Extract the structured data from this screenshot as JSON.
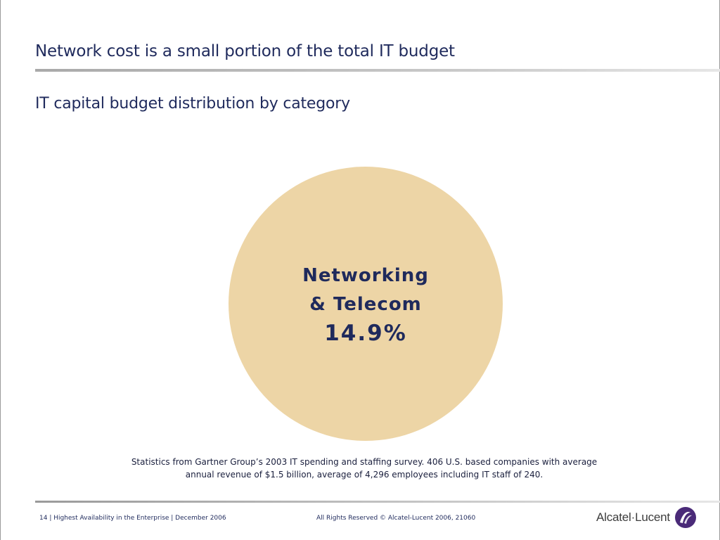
{
  "slide": {
    "title": "Network cost is a small portion of the total IT budget",
    "subtitle": "IT capital budget distribution by category"
  },
  "chart_data": {
    "type": "pie",
    "slices": [
      {
        "label_line1": "Networking",
        "label_line2": "& Telecom",
        "value_text": "14.9%",
        "value": 14.9
      }
    ],
    "colors": {
      "fill": "#edd5a6",
      "label": "#1f2a5c"
    }
  },
  "note": {
    "line1": "Statistics from Gartner Group’s 2003 IT spending and staffing survey. 406 U.S. based companies with average",
    "line2": "annual revenue of $1.5 billion, average of 4,296 employees including IT staff of 240."
  },
  "footer": {
    "left": "14 | Highest Availability in the Enterprise | December 2006",
    "center": "All Rights Reserved © Alcatel-Lucent 2006, 21060",
    "logo_text": "Alcatel·Lucent",
    "logo_icon": "alcatel-lucent-swirl-icon"
  },
  "colors": {
    "title": "#1f2a5c",
    "logo_mark": "#4a2a78"
  }
}
